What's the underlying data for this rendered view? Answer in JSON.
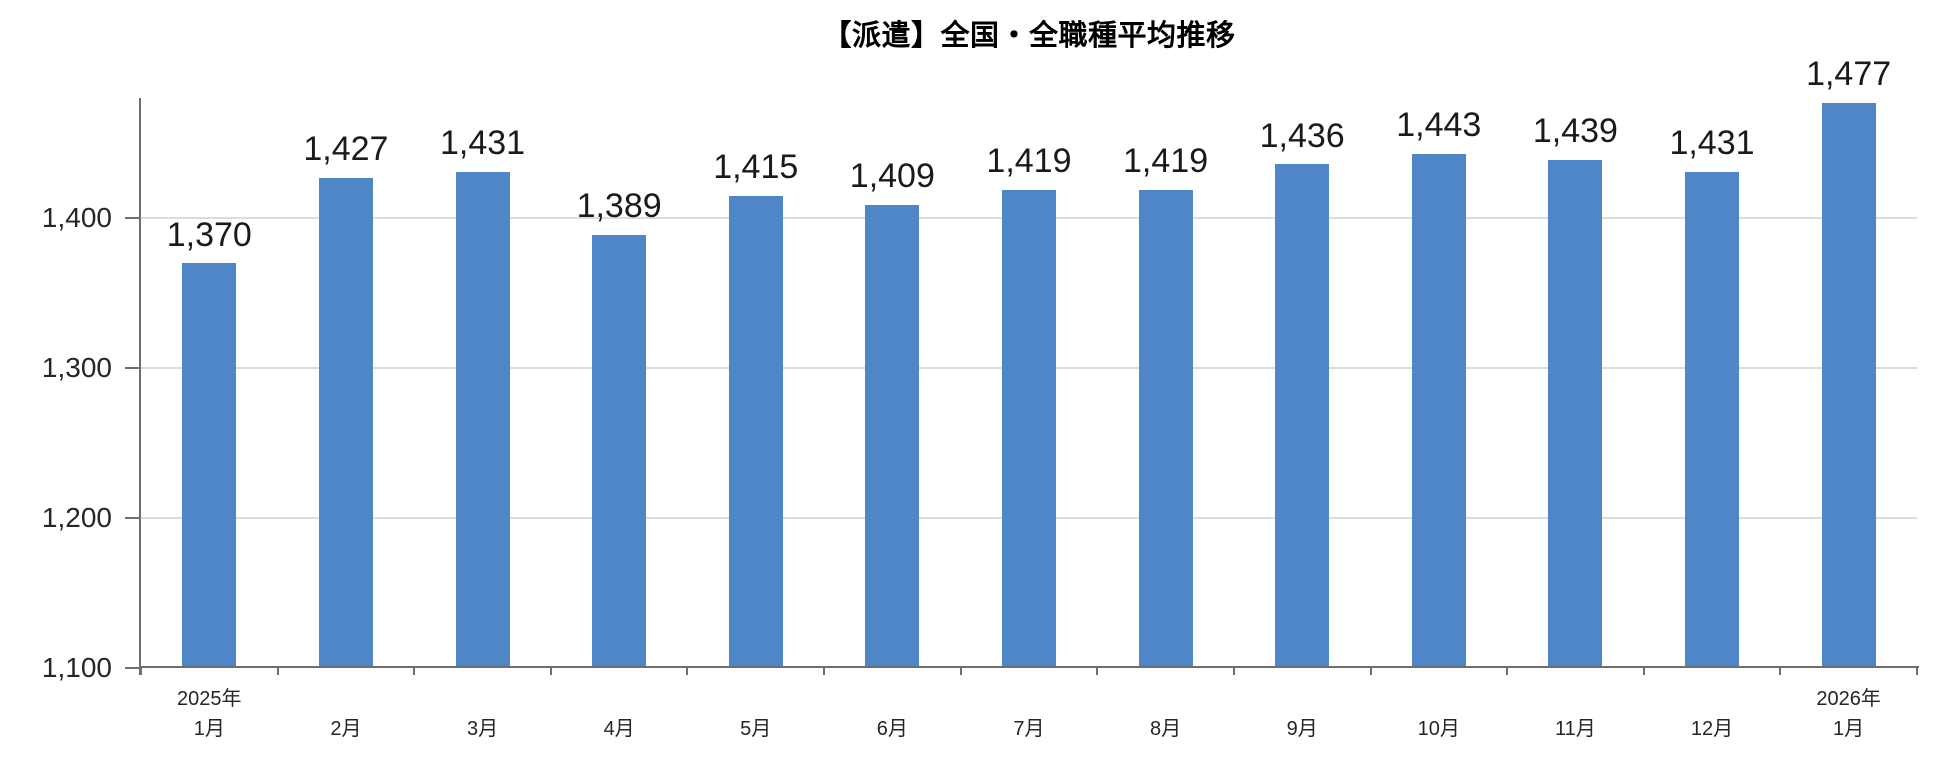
{
  "chart": {
    "title": "【派遣】全国・全職種平均推移"
  },
  "chart_data": {
    "type": "bar",
    "title": "【派遣】全国・全職種平均推移",
    "categories": [
      "1月",
      "2月",
      "3月",
      "4月",
      "5月",
      "6月",
      "7月",
      "8月",
      "9月",
      "10月",
      "11月",
      "12月",
      "1月"
    ],
    "category_year_labels": [
      "2025年",
      "",
      "",
      "",
      "",
      "",
      "",
      "",
      "",
      "",
      "",
      "",
      "2026年"
    ],
    "values": [
      1370,
      1427,
      1431,
      1389,
      1415,
      1409,
      1419,
      1419,
      1436,
      1443,
      1439,
      1431,
      1477
    ],
    "value_labels": [
      "1,370",
      "1,427",
      "1,431",
      "1,389",
      "1,415",
      "1,409",
      "1,419",
      "1,419",
      "1,436",
      "1,443",
      "1,439",
      "1,431",
      "1,477"
    ],
    "yticks": [
      1100,
      1200,
      1300,
      1400
    ],
    "ytick_labels": [
      "1,100",
      "1,200",
      "1,300",
      "1,400"
    ],
    "ylim": [
      1100,
      1480
    ],
    "xlabel": "",
    "ylabel": "",
    "grid": true,
    "legend": false,
    "bar_color": "#4e86c8"
  },
  "colors": {
    "bar": "#4e86c8",
    "gridline": "#dcdcdc",
    "axis": "#6e6e6e",
    "text": "#262626",
    "value_label": "#1a1a1a",
    "background": "#ffffff"
  }
}
